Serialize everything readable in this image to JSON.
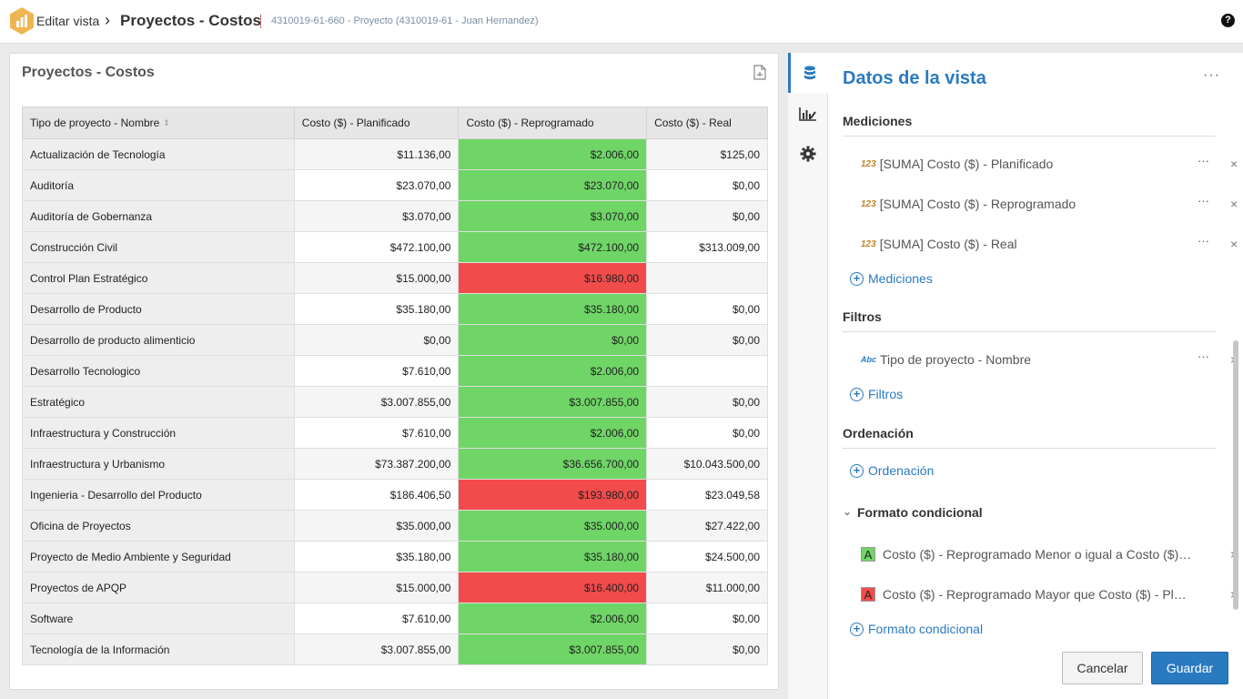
{
  "header": {
    "breadcrumb_edit": "Editar vista",
    "breadcrumb_sep": "›",
    "title": "Proyectos - Costos",
    "subtitle": "4310019-61-660 - Proyecto (4310019-61 - Juan Hernandez)",
    "help": "?"
  },
  "card": {
    "title": "Proyectos - Costos"
  },
  "table": {
    "columns": [
      "Tipo de proyecto - Nombre",
      "Costo ($) - Planificado",
      "Costo ($) - Reprogramado",
      "Costo ($) - Real"
    ],
    "rows": [
      {
        "name": "Actualización de Tecnología",
        "plan": "$11.136,00",
        "reprog": "$2.006,00",
        "real": "$125,00",
        "status": "good"
      },
      {
        "name": "Auditoría",
        "plan": "$23.070,00",
        "reprog": "$23.070,00",
        "real": "$0,00",
        "status": "good"
      },
      {
        "name": "Auditoría de Gobernanza",
        "plan": "$3.070,00",
        "reprog": "$3.070,00",
        "real": "$0,00",
        "status": "good"
      },
      {
        "name": "Construcción Civil",
        "plan": "$472.100,00",
        "reprog": "$472.100,00",
        "real": "$313.009,00",
        "status": "good"
      },
      {
        "name": "Control Plan Estratégico",
        "plan": "$15.000,00",
        "reprog": "$16.980,00",
        "real": "",
        "status": "bad"
      },
      {
        "name": "Desarrollo de Producto",
        "plan": "$35.180,00",
        "reprog": "$35.180,00",
        "real": "$0,00",
        "status": "good"
      },
      {
        "name": "Desarrollo de producto alimenticio",
        "plan": "$0,00",
        "reprog": "$0,00",
        "real": "$0,00",
        "status": "good"
      },
      {
        "name": "Desarrollo Tecnologico",
        "plan": "$7.610,00",
        "reprog": "$2.006,00",
        "real": "",
        "status": "good"
      },
      {
        "name": "Estratégico",
        "plan": "$3.007.855,00",
        "reprog": "$3.007.855,00",
        "real": "$0,00",
        "status": "good"
      },
      {
        "name": "Infraestructura y Construcción",
        "plan": "$7.610,00",
        "reprog": "$2.006,00",
        "real": "$0,00",
        "status": "good"
      },
      {
        "name": "Infraestructura y Urbanismo",
        "plan": "$73.387.200,00",
        "reprog": "$36.656.700,00",
        "real": "$10.043.500,00",
        "status": "good"
      },
      {
        "name": "Ingenieria - Desarrollo del Producto",
        "plan": "$186.406,50",
        "reprog": "$193.980,00",
        "real": "$23.049,58",
        "status": "bad"
      },
      {
        "name": "Oficina de Proyectos",
        "plan": "$35.000,00",
        "reprog": "$35.000,00",
        "real": "$27.422,00",
        "status": "good"
      },
      {
        "name": "Proyecto de Medio Ambiente y Seguridad",
        "plan": "$35.180,00",
        "reprog": "$35.180,00",
        "real": "$24.500,00",
        "status": "good"
      },
      {
        "name": "Proyectos de APQP",
        "plan": "$15.000,00",
        "reprog": "$16.400,00",
        "real": "$11.000,00",
        "status": "bad"
      },
      {
        "name": "Software",
        "plan": "$7.610,00",
        "reprog": "$2.006,00",
        "real": "$0,00",
        "status": "good"
      },
      {
        "name": "Tecnología de la Información",
        "plan": "$3.007.855,00",
        "reprog": "$3.007.855,00",
        "real": "$0,00",
        "status": "good"
      }
    ]
  },
  "panel": {
    "title": "Datos de la vista",
    "dots": "···",
    "measures_head": "Mediciones",
    "measures": [
      {
        "icon": "123",
        "label": "[SUMA] Costo ($) - Planificado"
      },
      {
        "icon": "123",
        "label": "[SUMA] Costo ($) - Reprogramado"
      },
      {
        "icon": "123",
        "label": "[SUMA] Costo ($) - Real"
      }
    ],
    "add_measures": "Mediciones",
    "filters_head": "Filtros",
    "filter": {
      "icon": "Abc",
      "label": "Tipo de proyecto - Nombre"
    },
    "add_filters": "Filtros",
    "order_head": "Ordenación",
    "add_order": "Ordenación",
    "cond_head": "Formato condicional",
    "conditions": [
      {
        "swatch": "A",
        "color": "#6fd566",
        "label": "Costo ($) - Reprogramado Menor o igual a Costo ($) - Planificado"
      },
      {
        "swatch": "A",
        "color": "#f24b4b",
        "label": "Costo ($) - Reprogramado Mayor que Costo ($) - Planificado"
      }
    ],
    "add_cond": "Formato condicional",
    "cancel": "Cancelar",
    "save": "Guardar"
  },
  "colors": {
    "accent": "#2a7ac0",
    "good": "#6fd566",
    "bad": "#f24b4b",
    "logo": "#f0b550"
  }
}
